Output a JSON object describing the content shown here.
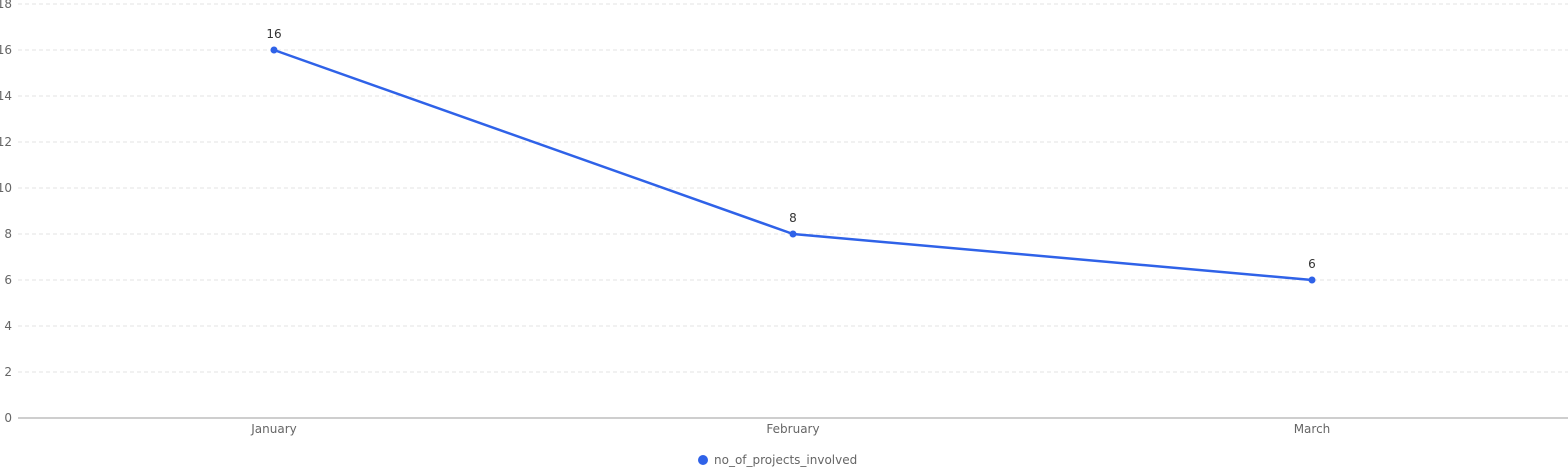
{
  "chart_data": {
    "type": "line",
    "categories": [
      "January",
      "February",
      "March"
    ],
    "series": [
      {
        "name": "no_of_projects_involved",
        "values": [
          16,
          8,
          6
        ],
        "color": "#2f62e8"
      }
    ],
    "ylim": [
      0,
      18
    ],
    "yticks": [
      0,
      2,
      4,
      6,
      8,
      10,
      12,
      14,
      16,
      18
    ],
    "grid": true,
    "legend_position": "bottom-center",
    "data_labels": true
  }
}
